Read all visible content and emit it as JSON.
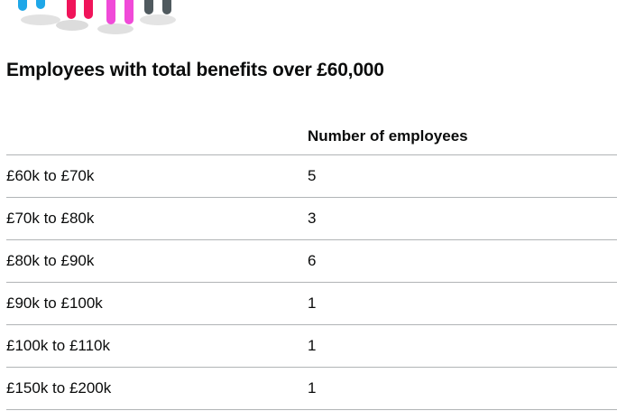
{
  "heading": "Employees with total benefits over £60,000",
  "table": {
    "header": [
      "Number of employees"
    ],
    "rows": [
      [
        "£60k to £70k",
        5
      ],
      [
        "£70k to £80k",
        3
      ],
      [
        "£80k to £90k",
        6
      ],
      [
        "£90k to £100k",
        1
      ],
      [
        "£100k to £110k",
        1
      ],
      [
        "£150k to £200k",
        1
      ]
    ]
  }
}
